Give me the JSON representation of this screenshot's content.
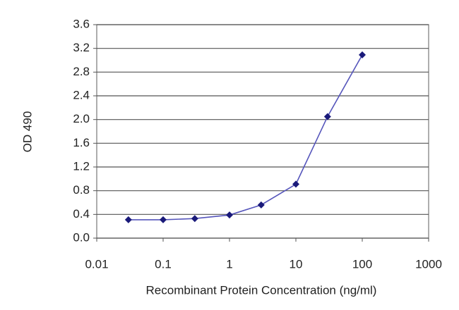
{
  "chart_data": {
    "type": "line",
    "x": [
      0.03,
      0.1,
      0.3,
      1,
      3,
      10,
      30,
      100
    ],
    "values": [
      0.31,
      0.31,
      0.33,
      0.39,
      0.56,
      0.91,
      2.05,
      3.09
    ],
    "color": "#5555bb",
    "marker_color": "#1a1a7a",
    "xlabel": "Recombinant Protein Concentration (ng/ml)",
    "ylabel": "OD 490",
    "xscale": "log",
    "xlim": [
      0.01,
      1000
    ],
    "xticks": [
      0.01,
      0.1,
      1,
      10,
      100,
      1000
    ],
    "ylim": [
      0,
      3.6
    ],
    "yticks": [
      {
        "value": 0,
        "label": "0.0"
      },
      0.4,
      0.8,
      1.2,
      1.6,
      {
        "value": 2,
        "label": "2.0"
      },
      2.4,
      2.8,
      3.2,
      3.6
    ],
    "grid": true
  }
}
